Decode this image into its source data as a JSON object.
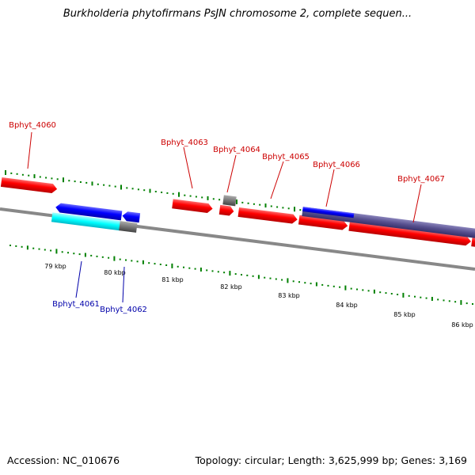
{
  "title": "Burkholderia phytofirmans PsJN chromosome 2, complete sequen...",
  "footer": {
    "accession": "Accession: NC_010676",
    "summary": "Topology: circular; Length: 3,625,999 bp; Genes: 3,169"
  },
  "colors": {
    "forward_gene": "#ff0000",
    "reverse_gene": "#0000ff",
    "rna_or_pseudo": "#777777",
    "cds_forward": "#00ffff",
    "cds_reverse": "#57508f",
    "backbone": "#888888",
    "tick": "#008000",
    "label_forward": "#cc0000",
    "label_reverse": "#0000aa"
  },
  "scale": {
    "kbp_labels": [
      "79 kbp",
      "80 kbp",
      "81 kbp",
      "82 kbp",
      "83 kbp",
      "84 kbp",
      "85 kbp",
      "86 kbp"
    ]
  },
  "genes": {
    "forward_labels": [
      "Bphyt_4060",
      "Bphyt_4063",
      "Bphyt_4064",
      "Bphyt_4065",
      "Bphyt_4066",
      "Bphyt_4067"
    ],
    "reverse_labels": [
      "Bphyt_4061",
      "Bphyt_4062"
    ]
  }
}
